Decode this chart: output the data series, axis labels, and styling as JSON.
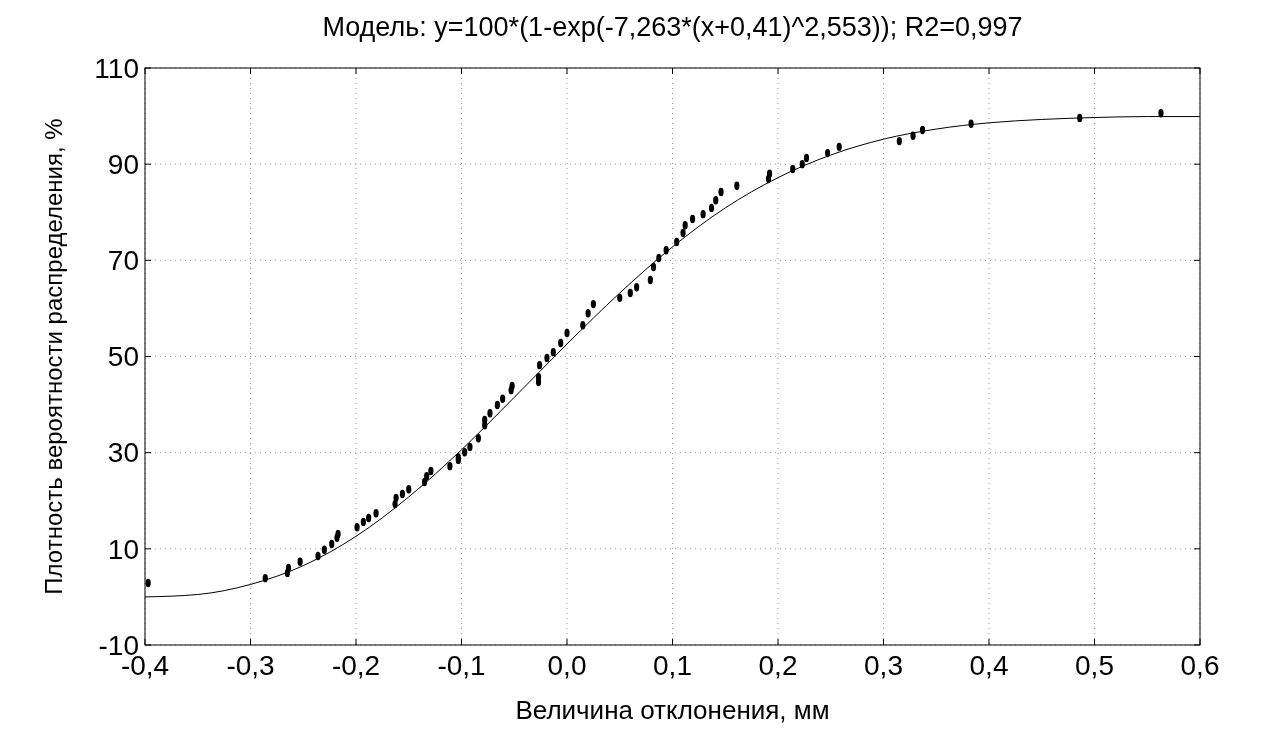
{
  "chart_data": {
    "type": "scatter",
    "title": "Модель: y=100*(1-exp(-7,263*(x+0,41)^2,553)); R2=0,997",
    "xlabel": "Величина отклонения, мм",
    "ylabel": "Плотность вероятности распределения, %",
    "xlim": [
      -0.4,
      0.6
    ],
    "ylim": [
      -10,
      110
    ],
    "xticks": [
      {
        "value": -0.4,
        "label": "-0,4"
      },
      {
        "value": -0.3,
        "label": "-0,3"
      },
      {
        "value": -0.2,
        "label": "-0,2"
      },
      {
        "value": -0.1,
        "label": "-0,1"
      },
      {
        "value": 0,
        "label": "0,0"
      },
      {
        "value": 0.1,
        "label": "0,1"
      },
      {
        "value": 0.2,
        "label": "0,2"
      },
      {
        "value": 0.3,
        "label": "0,3"
      },
      {
        "value": 0.4,
        "label": "0,4"
      },
      {
        "value": 0.5,
        "label": "0,5"
      },
      {
        "value": 0.6,
        "label": "0,6"
      }
    ],
    "yticks": [
      -10,
      10,
      30,
      50,
      70,
      90,
      110
    ],
    "grid": true,
    "marker": "circle",
    "series": [
      {
        "color": "#000000",
        "x": [
          -0.397,
          -0.286,
          -0.265,
          -0.264,
          -0.253,
          -0.236,
          -0.23,
          -0.223,
          -0.218,
          -0.217,
          -0.199,
          -0.193,
          -0.188,
          -0.181,
          -0.163,
          -0.162,
          -0.156,
          -0.15,
          -0.135,
          -0.133,
          -0.129,
          -0.111,
          -0.103,
          -0.103,
          -0.097,
          -0.092,
          -0.084,
          -0.078,
          -0.078,
          -0.073,
          -0.066,
          -0.061,
          -0.053,
          -0.052,
          -0.027,
          -0.027,
          -0.026,
          -0.019,
          -0.013,
          -0.006,
          0.0,
          0.015,
          0.02,
          0.025,
          0.05,
          0.06,
          0.066,
          0.079,
          0.082,
          0.087,
          0.094,
          0.104,
          0.11,
          0.112,
          0.119,
          0.129,
          0.137,
          0.141,
          0.146,
          0.161,
          0.191,
          0.192,
          0.214,
          0.223,
          0.227,
          0.247,
          0.258,
          0.315,
          0.328,
          0.337,
          0.383,
          0.486,
          0.563
        ],
        "values": [
          2.9,
          3.9,
          5.0,
          6.0,
          7.3,
          8.5,
          9.8,
          11.0,
          12.3,
          13.1,
          14.5,
          15.6,
          16.4,
          17.4,
          19.3,
          20.6,
          21.4,
          22.4,
          23.9,
          25.1,
          26.2,
          27.2,
          28.5,
          29.0,
          30.1,
          31.2,
          33.0,
          35.7,
          36.8,
          38.2,
          39.9,
          41.2,
          43.0,
          43.9,
          44.7,
          45.7,
          48.2,
          49.7,
          50.9,
          52.8,
          54.9,
          56.5,
          59.0,
          60.9,
          62.2,
          63.2,
          64.4,
          65.9,
          68.6,
          70.5,
          72.1,
          73.8,
          75.7,
          77.3,
          78.6,
          79.6,
          80.9,
          82.5,
          84.2,
          85.5,
          86.9,
          88.0,
          89.0,
          90.0,
          91.3,
          92.3,
          93.6,
          94.8,
          95.9,
          97.1,
          98.4,
          99.6,
          100.6
        ]
      },
      {
        "type": "line",
        "color": "#000000",
        "marker": "none",
        "line_style": "solid",
        "x": [
          -0.4,
          -0.35,
          -0.3,
          -0.25,
          -0.2,
          -0.15,
          -0.1,
          -0.05,
          0,
          0.05,
          0.1,
          0.15,
          0.2,
          0.25,
          0.3,
          0.35,
          0.4,
          0.45,
          0.5,
          0.55,
          0.6
        ],
        "values": [
          0.0,
          0.5,
          2.6,
          6.5,
          12.6,
          20.8,
          30.6,
          41.5,
          52.6,
          63.2,
          72.8,
          80.9,
          87.2,
          91.9,
          95.2,
          97.3,
          98.6,
          99.3,
          99.7,
          99.9,
          99.9
        ]
      }
    ]
  }
}
